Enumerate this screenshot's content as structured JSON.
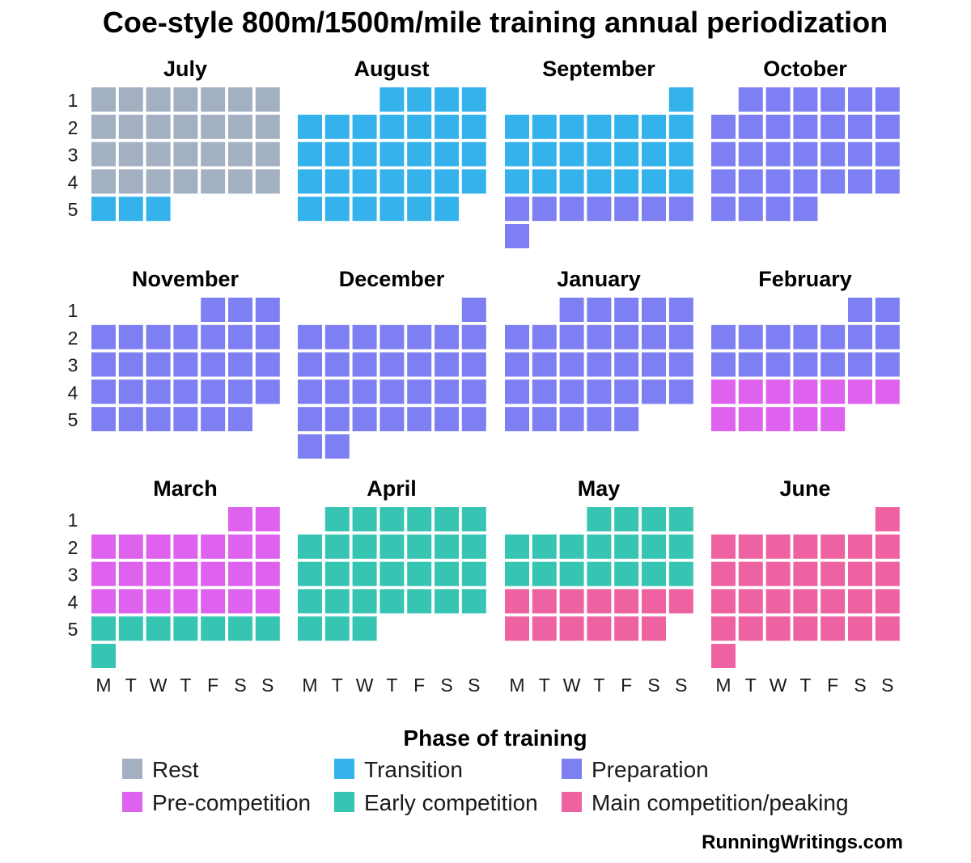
{
  "chart_data": {
    "type": "heatmap",
    "title": "Coe-style 800m/1500m/mile training annual periodization",
    "credit": "RunningWritings.com",
    "weekday_labels": [
      "M",
      "T",
      "W",
      "T",
      "F",
      "S",
      "S"
    ],
    "week_labels": [
      "1",
      "2",
      "3",
      "4",
      "5"
    ],
    "legend": {
      "title": "Phase of training",
      "placement": "bottom",
      "items": [
        {
          "key": "rest",
          "label": "Rest",
          "color": "#a3b0c1"
        },
        {
          "key": "transition",
          "label": "Transition",
          "color": "#33b2ec"
        },
        {
          "key": "preparation",
          "label": "Preparation",
          "color": "#7e7ff2"
        },
        {
          "key": "pre_competition",
          "label": "Pre-competition",
          "color": "#de62ee"
        },
        {
          "key": "early_competition",
          "label": "Early competition",
          "color": "#36c5b2"
        },
        {
          "key": "main_competition",
          "label": "Main competition/peaking",
          "color": "#ee62a2"
        }
      ]
    },
    "months": [
      {
        "name": "July",
        "start_weekday": 1,
        "days": 31,
        "phases": [
          {
            "phase": "rest",
            "from": 1,
            "to": 28
          },
          {
            "phase": "transition",
            "from": 29,
            "to": 31
          }
        ]
      },
      {
        "name": "August",
        "start_weekday": 4,
        "days": 31,
        "phases": [
          {
            "phase": "transition",
            "from": 1,
            "to": 31
          }
        ]
      },
      {
        "name": "September",
        "start_weekday": 7,
        "days": 30,
        "phases": [
          {
            "phase": "transition",
            "from": 1,
            "to": 22
          },
          {
            "phase": "preparation",
            "from": 23,
            "to": 30
          }
        ]
      },
      {
        "name": "October",
        "start_weekday": 2,
        "days": 31,
        "phases": [
          {
            "phase": "preparation",
            "from": 1,
            "to": 31
          }
        ]
      },
      {
        "name": "November",
        "start_weekday": 5,
        "days": 30,
        "phases": [
          {
            "phase": "preparation",
            "from": 1,
            "to": 30
          }
        ]
      },
      {
        "name": "December",
        "start_weekday": 7,
        "days": 31,
        "phases": [
          {
            "phase": "preparation",
            "from": 1,
            "to": 31
          }
        ]
      },
      {
        "name": "January",
        "start_weekday": 3,
        "days": 31,
        "phases": [
          {
            "phase": "preparation",
            "from": 1,
            "to": 31
          }
        ]
      },
      {
        "name": "February",
        "start_weekday": 6,
        "days": 28,
        "phases": [
          {
            "phase": "preparation",
            "from": 1,
            "to": 16
          },
          {
            "phase": "pre_competition",
            "from": 17,
            "to": 28
          }
        ]
      },
      {
        "name": "March",
        "start_weekday": 6,
        "days": 31,
        "phases": [
          {
            "phase": "pre_competition",
            "from": 1,
            "to": 23
          },
          {
            "phase": "early_competition",
            "from": 24,
            "to": 31
          }
        ]
      },
      {
        "name": "April",
        "start_weekday": 2,
        "days": 30,
        "phases": [
          {
            "phase": "early_competition",
            "from": 1,
            "to": 30
          }
        ]
      },
      {
        "name": "May",
        "start_weekday": 4,
        "days": 31,
        "phases": [
          {
            "phase": "early_competition",
            "from": 1,
            "to": 18
          },
          {
            "phase": "main_competition",
            "from": 19,
            "to": 31
          }
        ]
      },
      {
        "name": "June",
        "start_weekday": 7,
        "days": 30,
        "phases": [
          {
            "phase": "main_competition",
            "from": 1,
            "to": 30
          }
        ]
      }
    ]
  }
}
